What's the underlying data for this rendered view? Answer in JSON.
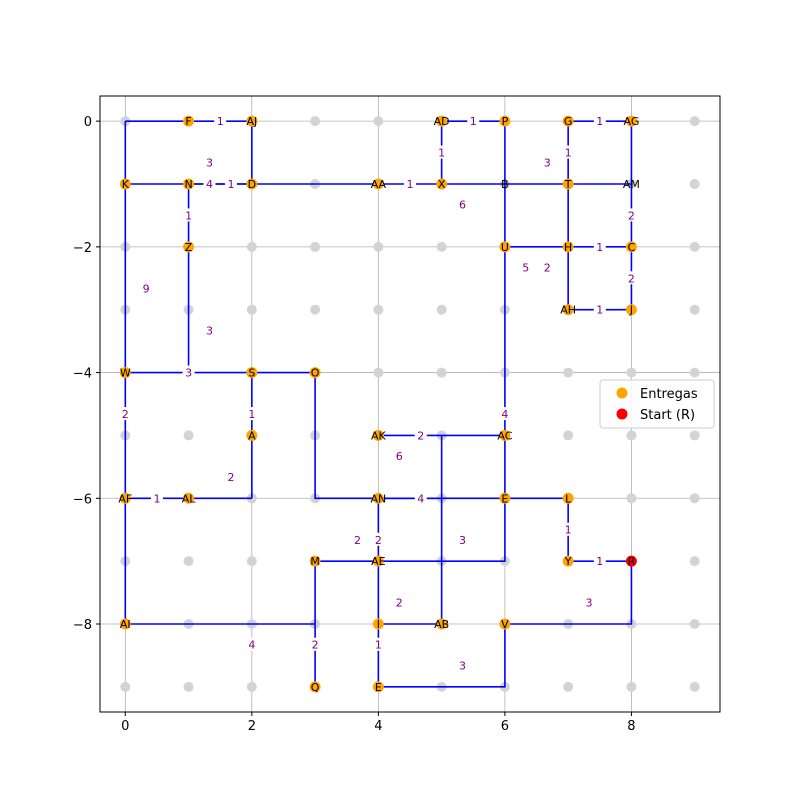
{
  "chart_data": {
    "type": "graph",
    "xlim": [
      -0.4,
      9.4
    ],
    "ylim": [
      -9.4,
      0.4
    ],
    "x_ticks": [
      0,
      2,
      4,
      6,
      8
    ],
    "y_ticks": [
      0,
      -2,
      -4,
      -6,
      -8
    ],
    "x_tick_labels": [
      "0",
      "2",
      "4",
      "6",
      "8"
    ],
    "y_tick_labels": [
      "0",
      "−2",
      "−4",
      "−6",
      "−8"
    ],
    "grid": true,
    "legend_position": "right-middle",
    "legend": [
      {
        "label": "Entregas",
        "color": "#ffa500"
      },
      {
        "label": "Start (R)",
        "color": "#ff0000"
      }
    ],
    "colors": {
      "background_node": "#d3d3d3",
      "delivery": "#ffa500",
      "start": "#ff0000",
      "edge": "#0000ff",
      "weight_label": "#800080",
      "grid": "#b0b0b0"
    },
    "nodes": [
      {
        "label": "F",
        "x": 1,
        "y": 0,
        "kind": "delivery"
      },
      {
        "label": "AJ",
        "x": 2,
        "y": 0,
        "kind": "delivery"
      },
      {
        "label": "AD",
        "x": 5,
        "y": 0,
        "kind": "delivery"
      },
      {
        "label": "P",
        "x": 6,
        "y": 0,
        "kind": "delivery"
      },
      {
        "label": "G",
        "x": 7,
        "y": 0,
        "kind": "delivery"
      },
      {
        "label": "AG",
        "x": 8,
        "y": 0,
        "kind": "delivery"
      },
      {
        "label": "K",
        "x": 0,
        "y": -1,
        "kind": "delivery"
      },
      {
        "label": "N",
        "x": 1,
        "y": -1,
        "kind": "delivery"
      },
      {
        "label": "D",
        "x": 2,
        "y": -1,
        "kind": "delivery"
      },
      {
        "label": "AA",
        "x": 4,
        "y": -1,
        "kind": "delivery"
      },
      {
        "label": "X",
        "x": 5,
        "y": -1,
        "kind": "delivery"
      },
      {
        "label": "B",
        "x": 6,
        "y": -1,
        "kind": "plain"
      },
      {
        "label": "T",
        "x": 7,
        "y": -1,
        "kind": "delivery"
      },
      {
        "label": "AM",
        "x": 8,
        "y": -1,
        "kind": "plain"
      },
      {
        "label": "Z",
        "x": 1,
        "y": -2,
        "kind": "delivery"
      },
      {
        "label": "U",
        "x": 6,
        "y": -2,
        "kind": "delivery"
      },
      {
        "label": "H",
        "x": 7,
        "y": -2,
        "kind": "delivery"
      },
      {
        "label": "C",
        "x": 8,
        "y": -2,
        "kind": "delivery"
      },
      {
        "label": "AH",
        "x": 7,
        "y": -3,
        "kind": "delivery"
      },
      {
        "label": "J",
        "x": 8,
        "y": -3,
        "kind": "delivery"
      },
      {
        "label": "W",
        "x": 0,
        "y": -4,
        "kind": "delivery"
      },
      {
        "label": "S",
        "x": 2,
        "y": -4,
        "kind": "delivery"
      },
      {
        "label": "O",
        "x": 3,
        "y": -4,
        "kind": "delivery"
      },
      {
        "label": "A",
        "x": 2,
        "y": -5,
        "kind": "delivery"
      },
      {
        "label": "AK",
        "x": 4,
        "y": -5,
        "kind": "delivery"
      },
      {
        "label": "AC",
        "x": 6,
        "y": -5,
        "kind": "delivery"
      },
      {
        "label": "AF",
        "x": 0,
        "y": -6,
        "kind": "delivery"
      },
      {
        "label": "AL",
        "x": 1,
        "y": -6,
        "kind": "delivery"
      },
      {
        "label": "AN",
        "x": 4,
        "y": -6,
        "kind": "delivery"
      },
      {
        "label": "E",
        "x": 6,
        "y": -6,
        "kind": "delivery"
      },
      {
        "label": "L",
        "x": 7,
        "y": -6,
        "kind": "delivery"
      },
      {
        "label": "M",
        "x": 3,
        "y": -7,
        "kind": "delivery"
      },
      {
        "label": "AE",
        "x": 4,
        "y": -7,
        "kind": "delivery"
      },
      {
        "label": "Y",
        "x": 7,
        "y": -7,
        "kind": "delivery"
      },
      {
        "label": "R",
        "x": 8,
        "y": -7,
        "kind": "start"
      },
      {
        "label": "AI",
        "x": 0,
        "y": -8,
        "kind": "delivery"
      },
      {
        "label": "I",
        "x": 4,
        "y": -8,
        "kind": "delivery"
      },
      {
        "label": "AB",
        "x": 5,
        "y": -8,
        "kind": "delivery"
      },
      {
        "label": "V",
        "x": 6,
        "y": -8,
        "kind": "delivery"
      },
      {
        "label": "Q",
        "x": 3,
        "y": -9,
        "kind": "delivery"
      },
      {
        "label": "E",
        "x": 4,
        "y": -9,
        "kind": "delivery"
      }
    ],
    "edges": [
      {
        "path": [
          [
            1,
            0
          ],
          [
            2,
            0
          ]
        ],
        "weight": "1"
      },
      {
        "path": [
          [
            0,
            0
          ],
          [
            1,
            0
          ]
        ],
        "weight": ""
      },
      {
        "path": [
          [
            5,
            0
          ],
          [
            6,
            0
          ]
        ],
        "weight": "1"
      },
      {
        "path": [
          [
            7,
            0
          ],
          [
            8,
            0
          ]
        ],
        "weight": "1"
      },
      {
        "path": [
          [
            5,
            0
          ],
          [
            5,
            -1
          ]
        ],
        "weight": "1"
      },
      {
        "path": [
          [
            7,
            0
          ],
          [
            7,
            -1
          ]
        ],
        "weight": "1"
      },
      {
        "path": [
          [
            2,
            0
          ],
          [
            2,
            -1
          ]
        ],
        "weight": "3",
        "lx": 1.33,
        "ly": -0.66
      },
      {
        "path": [
          [
            6,
            0
          ],
          [
            6,
            -1
          ]
        ],
        "weight": "3",
        "lx": 6.67,
        "ly": -0.66
      },
      {
        "path": [
          [
            8,
            0
          ],
          [
            8,
            -1
          ]
        ],
        "weight": ""
      },
      {
        "path": [
          [
            0,
            -1
          ],
          [
            1,
            -1
          ]
        ],
        "weight": ""
      },
      {
        "path": [
          [
            1,
            -1
          ],
          [
            2,
            -1
          ]
        ],
        "weight": "4",
        "lx": 1.33,
        "ly": -1
      },
      {
        "path": [
          [
            1,
            -1
          ],
          [
            2,
            -1
          ]
        ],
        "weight": "1",
        "lx": 1.67,
        "ly": -1
      },
      {
        "path": [
          [
            2,
            -1
          ],
          [
            4,
            -1
          ]
        ],
        "weight": ""
      },
      {
        "path": [
          [
            4,
            -1
          ],
          [
            5,
            -1
          ]
        ],
        "weight": "1"
      },
      {
        "path": [
          [
            5,
            -1
          ],
          [
            8,
            -1
          ]
        ],
        "weight": ""
      },
      {
        "path": [
          [
            5,
            -1
          ],
          [
            6,
            -2
          ]
        ],
        "weight": "6",
        "lx": 5.33,
        "ly": -1.33,
        "hidden": true
      },
      {
        "path": [
          [
            0,
            0
          ],
          [
            0,
            -4
          ]
        ],
        "weight": ""
      },
      {
        "path": [
          [
            1,
            -1
          ],
          [
            1,
            -2
          ]
        ],
        "weight": "1"
      },
      {
        "path": [
          [
            0,
            -1
          ],
          [
            1,
            -4
          ]
        ],
        "weight": "9",
        "lx": 0.33,
        "ly": -2.66,
        "hidden": true
      },
      {
        "path": [
          [
            1,
            -2
          ],
          [
            1,
            -4
          ]
        ],
        "weight": "3",
        "lx": 1.33,
        "ly": -3.33,
        "hidden": true
      },
      {
        "path": [
          [
            1,
            -2
          ],
          [
            1,
            -4
          ]
        ],
        "weight": ""
      },
      {
        "path": [
          [
            6,
            -1
          ],
          [
            6,
            -2
          ]
        ],
        "weight": ""
      },
      {
        "path": [
          [
            6,
            -2
          ],
          [
            7,
            -2
          ]
        ],
        "weight": ""
      },
      {
        "path": [
          [
            7,
            -1
          ],
          [
            7,
            -3
          ]
        ],
        "weight": ""
      },
      {
        "path": [
          [
            7,
            -2
          ],
          [
            8,
            -2
          ]
        ],
        "weight": "1"
      },
      {
        "path": [
          [
            8,
            -1
          ],
          [
            8,
            -2
          ]
        ],
        "weight": "2"
      },
      {
        "path": [
          [
            8,
            -2
          ],
          [
            8,
            -3
          ]
        ],
        "weight": "2"
      },
      {
        "path": [
          [
            7,
            -3
          ],
          [
            8,
            -3
          ]
        ],
        "weight": "1"
      },
      {
        "path": [
          [
            6,
            -2
          ],
          [
            6,
            -4
          ]
        ],
        "weight": "5",
        "lx": 6.33,
        "ly": -2.33,
        "hidden": true
      },
      {
        "path": [
          [
            6,
            -2
          ],
          [
            7,
            -2
          ]
        ],
        "weight": "2",
        "lx": 6.67,
        "ly": -2.33,
        "hidden": true
      },
      {
        "path": [
          [
            0,
            -4
          ],
          [
            3,
            -4
          ]
        ],
        "weight": "3",
        "lx": 1,
        "ly": -4
      },
      {
        "path": [
          [
            2,
            -4
          ],
          [
            2,
            -6
          ]
        ],
        "weight": "1",
        "lx": 2,
        "ly": -4.66
      },
      {
        "path": [
          [
            0,
            -4
          ],
          [
            0,
            -6
          ]
        ],
        "weight": "2",
        "lx": 0,
        "ly": -4.66
      },
      {
        "path": [
          [
            3,
            -4
          ],
          [
            3,
            -6
          ],
          [
            6,
            -6
          ]
        ],
        "weight": ""
      },
      {
        "path": [
          [
            6,
            -2
          ],
          [
            6,
            -7
          ],
          [
            4,
            -7
          ]
        ],
        "weight": "4",
        "lx": 6,
        "ly": -4.66
      },
      {
        "path": [
          [
            4,
            -5
          ],
          [
            6,
            -5
          ]
        ],
        "weight": "2",
        "lx": 4.67,
        "ly": -5
      },
      {
        "path": [
          [
            4,
            -5
          ],
          [
            5,
            -6
          ]
        ],
        "weight": "6",
        "lx": 4.33,
        "ly": -5.33,
        "hidden": true
      },
      {
        "path": [
          [
            5,
            -5
          ],
          [
            5,
            -8
          ]
        ],
        "weight": "3",
        "lx": 5.33,
        "ly": -6.66
      },
      {
        "path": [
          [
            1,
            -6
          ],
          [
            2,
            -6
          ]
        ],
        "weight": "2",
        "lx": 1.67,
        "ly": -5.66
      },
      {
        "path": [
          [
            0,
            -6
          ],
          [
            1,
            -6
          ]
        ],
        "weight": "1"
      },
      {
        "path": [
          [
            0,
            -6
          ],
          [
            0,
            -8
          ]
        ],
        "weight": ""
      },
      {
        "path": [
          [
            4,
            -6
          ],
          [
            5,
            -6
          ]
        ],
        "weight": "4",
        "lx": 4.67,
        "ly": -6
      },
      {
        "path": [
          [
            6,
            -6
          ],
          [
            7,
            -6
          ]
        ],
        "weight": ""
      },
      {
        "path": [
          [
            4,
            -6
          ],
          [
            4,
            -7
          ]
        ],
        "weight": "2",
        "lx": 4,
        "ly": -6.66
      },
      {
        "path": [
          [
            4,
            -6
          ],
          [
            3,
            -7
          ]
        ],
        "weight": "2",
        "lx": 3.67,
        "ly": -6.66,
        "hidden": true
      },
      {
        "path": [
          [
            7,
            -6
          ],
          [
            7,
            -7
          ]
        ],
        "weight": "1"
      },
      {
        "path": [
          [
            7,
            -7
          ],
          [
            8,
            -7
          ]
        ],
        "weight": "1"
      },
      {
        "path": [
          [
            3,
            -7
          ],
          [
            4,
            -7
          ]
        ],
        "weight": ""
      },
      {
        "path": [
          [
            3,
            -7
          ],
          [
            3,
            -9
          ]
        ],
        "weight": "2",
        "lx": 3,
        "ly": -8.33
      },
      {
        "path": [
          [
            0,
            -8
          ],
          [
            3,
            -8
          ]
        ],
        "weight": "4",
        "lx": 2,
        "ly": -8.33
      },
      {
        "path": [
          [
            4,
            -7
          ],
          [
            4,
            -8
          ]
        ],
        "weight": "2",
        "lx": 4.33,
        "ly": -7.66
      },
      {
        "path": [
          [
            4,
            -8
          ],
          [
            5,
            -8
          ]
        ],
        "weight": ""
      },
      {
        "path": [
          [
            4,
            -8
          ],
          [
            4,
            -9
          ]
        ],
        "weight": "1",
        "lx": 4,
        "ly": -8.33
      },
      {
        "path": [
          [
            6,
            -8
          ],
          [
            8,
            -8
          ],
          [
            8,
            -7
          ]
        ],
        "weight": "3",
        "lx": 7.33,
        "ly": -7.66
      },
      {
        "path": [
          [
            4,
            -9
          ],
          [
            6,
            -9
          ],
          [
            6,
            -8
          ]
        ],
        "weight": "3",
        "lx": 5.33,
        "ly": -8.66
      }
    ]
  }
}
